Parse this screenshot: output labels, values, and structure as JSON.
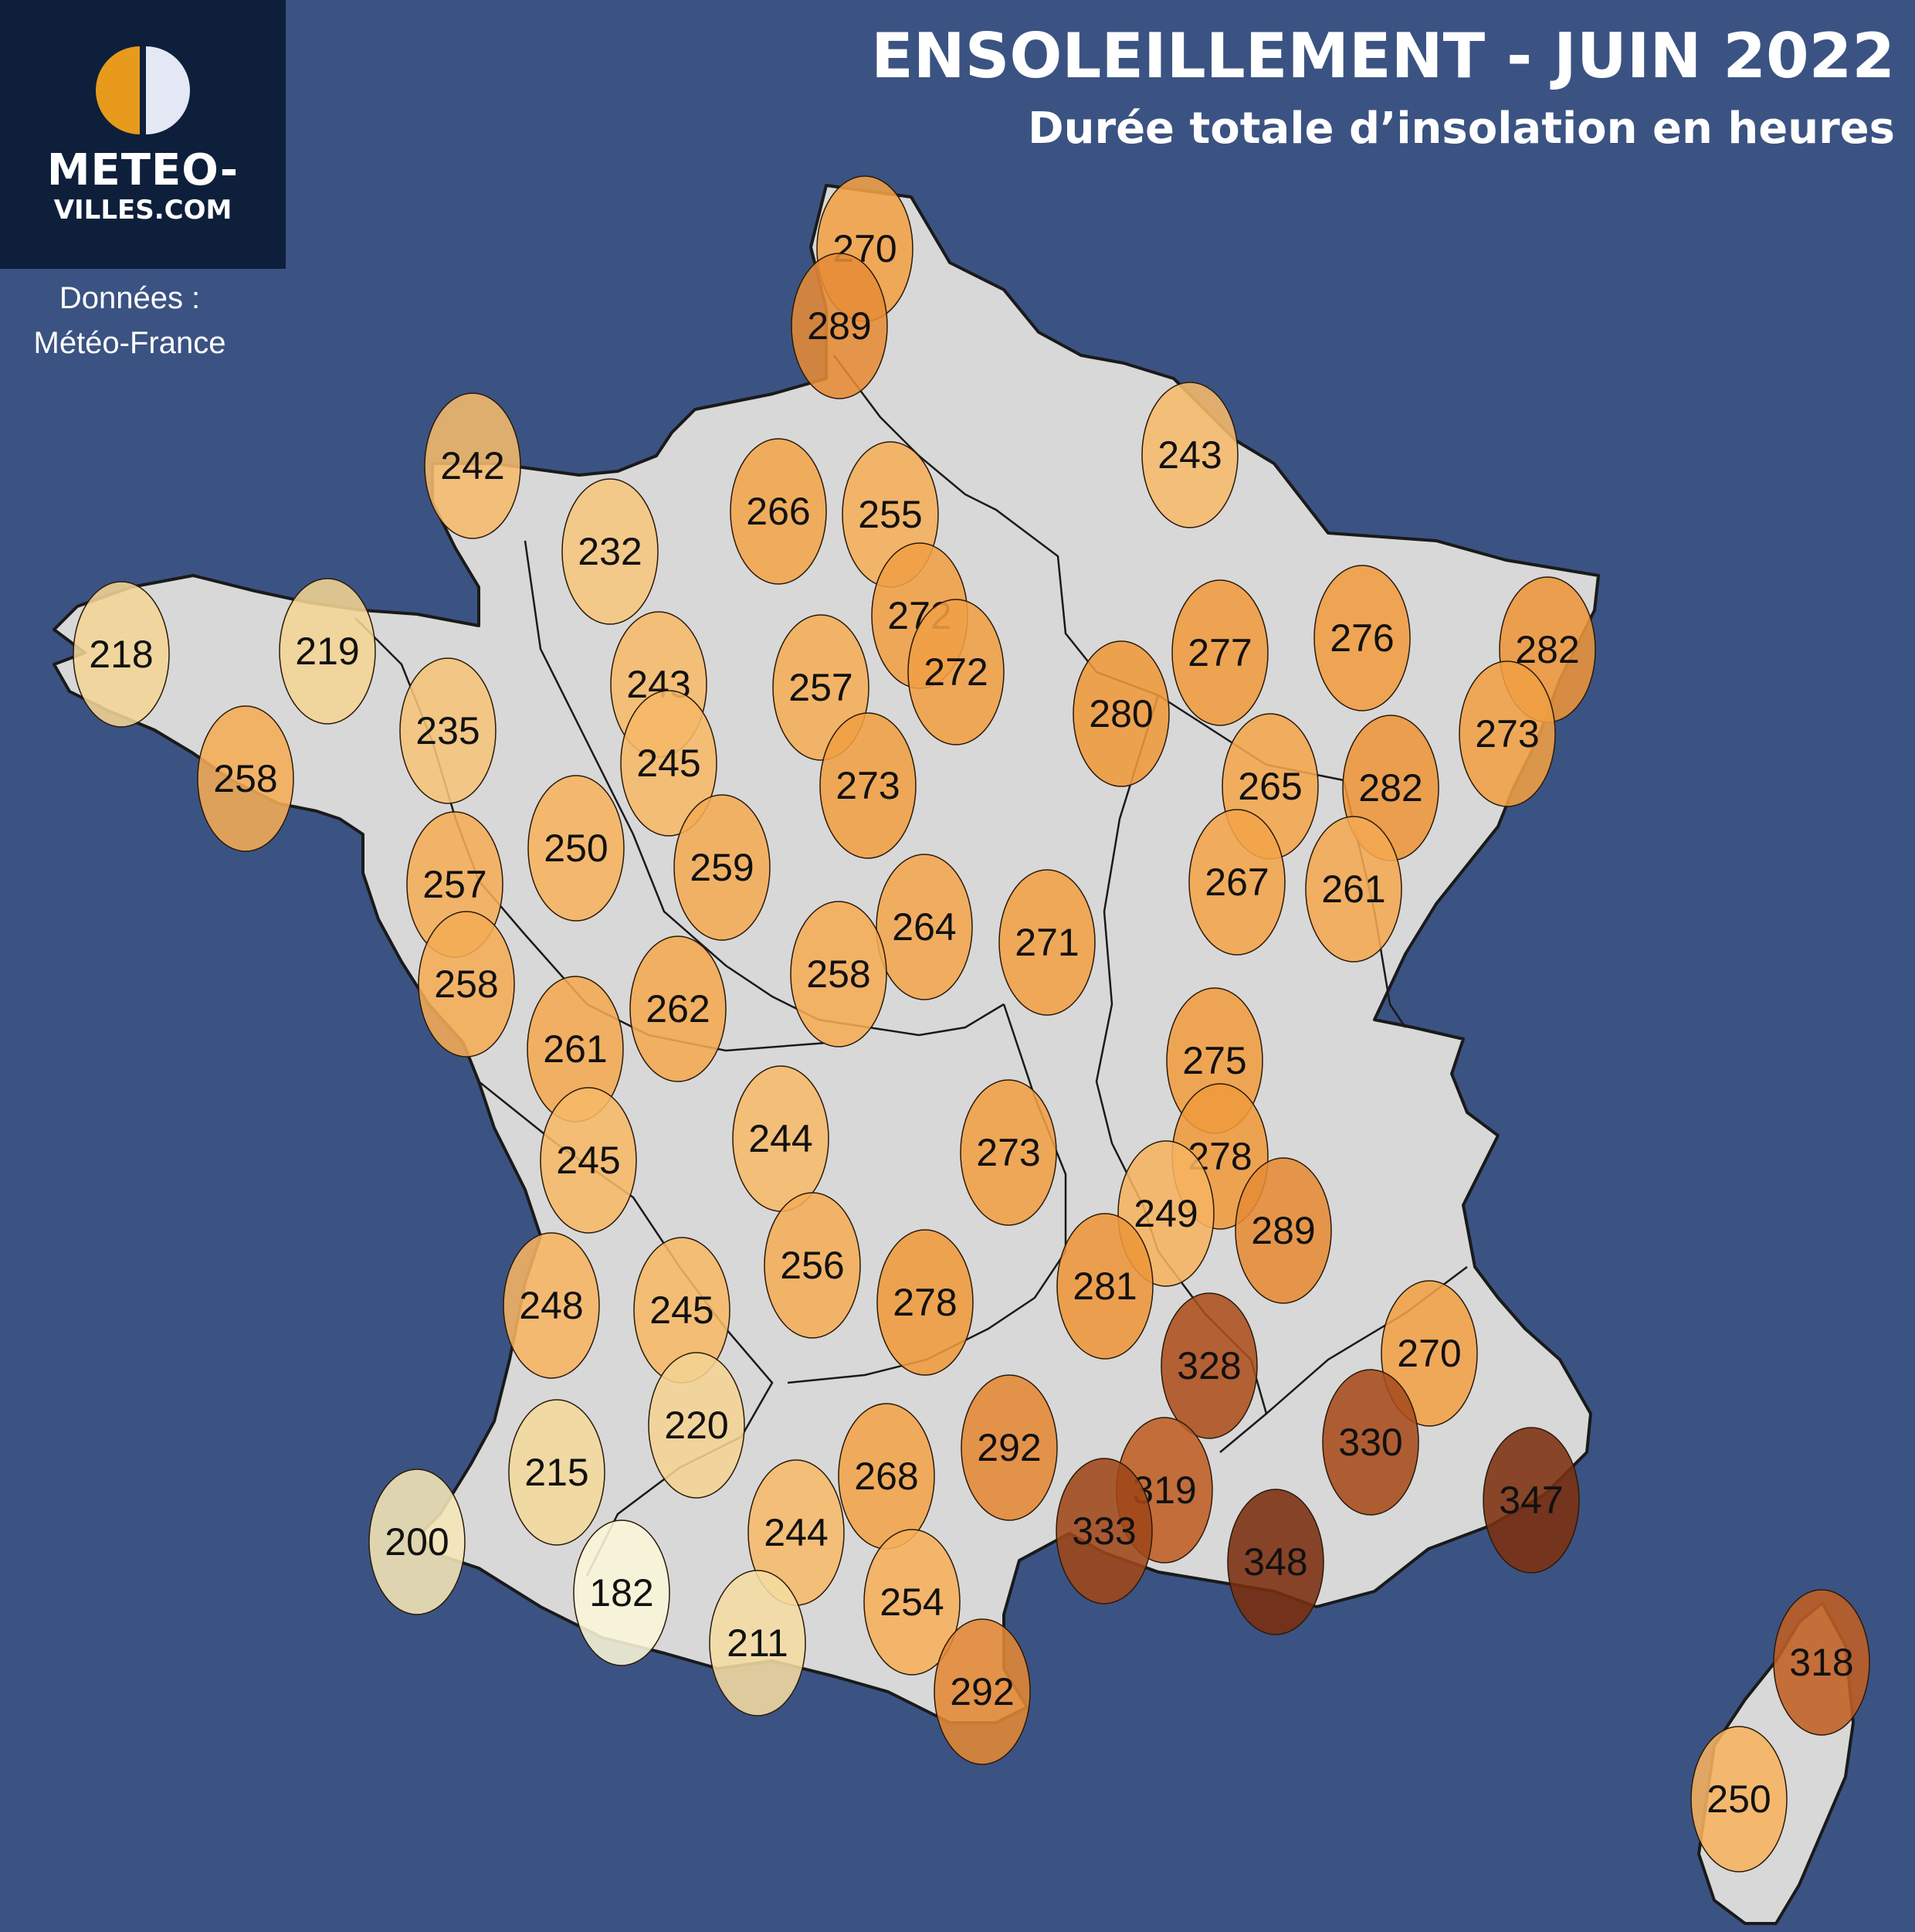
{
  "header": {
    "title": "ENSOLEILLEMENT - JUIN 2022",
    "subtitle": "Durée totale d’insolation en heures"
  },
  "logo": {
    "line1": "METEO-",
    "line2": "VILLES.COM",
    "icon": "sun-moon-logo-icon",
    "colors": {
      "panel": "#0d1f3a",
      "sun": "#e89a1c",
      "moon": "#e4e8f4"
    }
  },
  "credit": {
    "line1": "Données :",
    "line2": "Météo-France"
  },
  "colors": {
    "background": "#3b5382",
    "land": "#d8d8d8",
    "low": "#faf6d8",
    "high": "#7a2e0e"
  },
  "scale": {
    "min": 182,
    "max": 348
  },
  "stations": [
    {
      "id": "lille",
      "value": "270"
    },
    {
      "id": "boulogne",
      "value": "289"
    },
    {
      "id": "cherbourg",
      "value": "242"
    },
    {
      "id": "caen",
      "value": "232"
    },
    {
      "id": "rouen",
      "value": "266"
    },
    {
      "id": "beauvais",
      "value": "255"
    },
    {
      "id": "charleville",
      "value": "243"
    },
    {
      "id": "brest",
      "value": "218"
    },
    {
      "id": "saint-brieuc",
      "value": "219"
    },
    {
      "id": "paris-north",
      "value": "272"
    },
    {
      "id": "paris-east",
      "value": "272"
    },
    {
      "id": "reims",
      "value": "280"
    },
    {
      "id": "metz",
      "value": "277"
    },
    {
      "id": "nancy",
      "value": "276"
    },
    {
      "id": "strasbourg",
      "value": "282"
    },
    {
      "id": "colmar",
      "value": "273"
    },
    {
      "id": "rennes",
      "value": "235"
    },
    {
      "id": "lorient",
      "value": "258"
    },
    {
      "id": "le-mans",
      "value": "243"
    },
    {
      "id": "chartres",
      "value": "257"
    },
    {
      "id": "alencon",
      "value": "245"
    },
    {
      "id": "orleans",
      "value": "273"
    },
    {
      "id": "chaumont",
      "value": "265"
    },
    {
      "id": "epinal",
      "value": "282"
    },
    {
      "id": "nantes",
      "value": "257"
    },
    {
      "id": "angers",
      "value": "250"
    },
    {
      "id": "tours",
      "value": "259"
    },
    {
      "id": "dijon",
      "value": "267"
    },
    {
      "id": "besancon",
      "value": "261"
    },
    {
      "id": "auxerre",
      "value": "264"
    },
    {
      "id": "nevers",
      "value": "271"
    },
    {
      "id": "bourges",
      "value": "258"
    },
    {
      "id": "la-roche",
      "value": "258"
    },
    {
      "id": "niort",
      "value": "261"
    },
    {
      "id": "poitiers",
      "value": "262"
    },
    {
      "id": "macon",
      "value": "275"
    },
    {
      "id": "la-rochelle",
      "value": "245"
    },
    {
      "id": "limoges",
      "value": "244"
    },
    {
      "id": "clermont",
      "value": "273"
    },
    {
      "id": "lyon",
      "value": "278"
    },
    {
      "id": "saint-etienne",
      "value": "249"
    },
    {
      "id": "grenoble",
      "value": "289"
    },
    {
      "id": "bordeaux",
      "value": "248"
    },
    {
      "id": "perigueux",
      "value": "245"
    },
    {
      "id": "tulle",
      "value": "256"
    },
    {
      "id": "aurillac",
      "value": "278"
    },
    {
      "id": "le-puy",
      "value": "281"
    },
    {
      "id": "montelimar",
      "value": "328"
    },
    {
      "id": "gap",
      "value": "270"
    },
    {
      "id": "agen",
      "value": "220"
    },
    {
      "id": "mont-de-marsan",
      "value": "215"
    },
    {
      "id": "albi",
      "value": "268"
    },
    {
      "id": "millau",
      "value": "292"
    },
    {
      "id": "nimes",
      "value": "319"
    },
    {
      "id": "montpellier",
      "value": "333"
    },
    {
      "id": "marseille",
      "value": "348"
    },
    {
      "id": "digne",
      "value": "330"
    },
    {
      "id": "nice",
      "value": "347"
    },
    {
      "id": "biarritz",
      "value": "200"
    },
    {
      "id": "pau",
      "value": "182"
    },
    {
      "id": "toulouse",
      "value": "244"
    },
    {
      "id": "tarbes",
      "value": "211"
    },
    {
      "id": "carcassonne",
      "value": "254"
    },
    {
      "id": "perpignan",
      "value": "292"
    },
    {
      "id": "bastia",
      "value": "318"
    },
    {
      "id": "ajaccio",
      "value": "250"
    }
  ]
}
